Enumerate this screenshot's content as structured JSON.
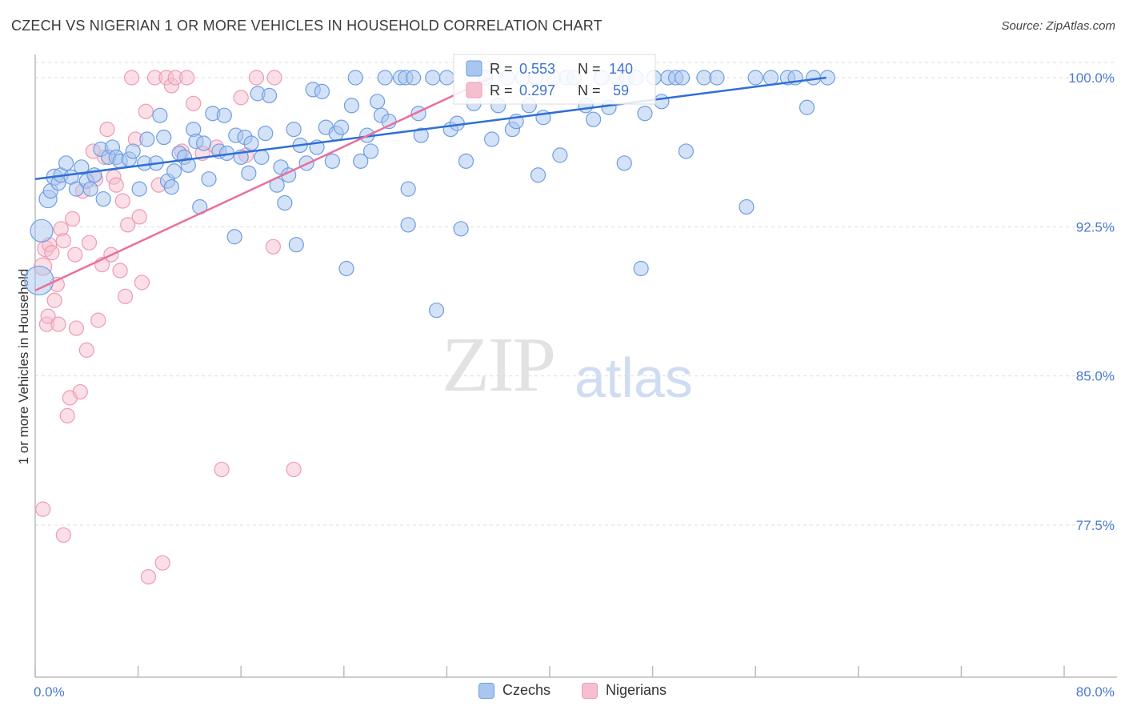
{
  "header": {
    "title": "CZECH VS NIGERIAN 1 OR MORE VEHICLES IN HOUSEHOLD CORRELATION CHART",
    "source": "Source: ZipAtlas.com"
  },
  "watermark": {
    "zip": "ZIP",
    "atlas": "atlas"
  },
  "colors": {
    "czech_fill": "#a9c6f0",
    "czech_stroke": "#6f9ee0",
    "czech_line": "#2e6fd6",
    "nigerian_fill": "#f6bfd0",
    "nigerian_stroke": "#ef9ab5",
    "nigerian_line": "#e8709a",
    "axis_text": "#4a7bd0",
    "grid": "#dddddd"
  },
  "legend": {
    "czech": {
      "r_label": "R =",
      "r_value": "0.553",
      "n_label": "N =",
      "n_value": "140"
    },
    "nigerian": {
      "r_label": "R =",
      "r_value": "0.297",
      "n_label": "N =",
      "n_value": " 59"
    }
  },
  "bottom_legend": {
    "czechs": "Czechs",
    "nigerians": "Nigerians"
  },
  "chart_data": {
    "type": "scatter",
    "title": "CZECH VS NIGERIAN 1 OR MORE VEHICLES IN HOUSEHOLD CORRELATION CHART",
    "xlabel": "",
    "ylabel": "1 or more Vehicles in Household",
    "xlim": [
      0,
      80
    ],
    "ylim": [
      71,
      100.5
    ],
    "x_tick_labels": [
      "0.0%",
      "80.0%"
    ],
    "y_ticks": [
      77.5,
      85.0,
      92.5,
      100.0
    ],
    "y_tick_labels": [
      "77.5%",
      "85.0%",
      "92.5%",
      "100.0%"
    ],
    "grid": "horizontal dashed",
    "legend_position": "top-center",
    "series": [
      {
        "name": "Czechs",
        "R": 0.553,
        "N": 140,
        "trend": [
          [
            0,
            94.9
          ],
          [
            61.5,
            100.0
          ]
        ],
        "points": [
          [
            0.5,
            92.3,
            14
          ],
          [
            0.3,
            89.8,
            18
          ],
          [
            1.0,
            93.9,
            11
          ],
          [
            1.2,
            94.3,
            9
          ],
          [
            1.5,
            95.0,
            10
          ],
          [
            1.8,
            94.7,
            9
          ],
          [
            2.0,
            95.1,
            9
          ],
          [
            2.4,
            95.7,
            9
          ],
          [
            2.8,
            95.0,
            9
          ],
          [
            3.2,
            94.4,
            9
          ],
          [
            3.6,
            95.5,
            9
          ],
          [
            4.0,
            94.8,
            9
          ],
          [
            4.3,
            94.4,
            9
          ],
          [
            4.6,
            95.1,
            9
          ],
          [
            5.1,
            96.4,
            9
          ],
          [
            5.3,
            93.9,
            9
          ],
          [
            5.7,
            96.0,
            9
          ],
          [
            6.0,
            96.5,
            9
          ],
          [
            6.3,
            96.0,
            9
          ],
          [
            6.6,
            95.8,
            9
          ],
          [
            7.3,
            95.9,
            9
          ],
          [
            7.6,
            96.3,
            9
          ],
          [
            8.1,
            94.4,
            9
          ],
          [
            8.5,
            95.7,
            9
          ],
          [
            8.7,
            96.9,
            9
          ],
          [
            9.4,
            95.7,
            9
          ],
          [
            9.7,
            98.1,
            9
          ],
          [
            10.0,
            97.0,
            9
          ],
          [
            10.3,
            94.8,
            9
          ],
          [
            10.6,
            94.5,
            9
          ],
          [
            10.8,
            95.3,
            9
          ],
          [
            11.2,
            96.2,
            9
          ],
          [
            11.6,
            96.0,
            9
          ],
          [
            11.9,
            95.6,
            9
          ],
          [
            12.3,
            97.4,
            9
          ],
          [
            12.5,
            96.8,
            9
          ],
          [
            12.8,
            93.5,
            9
          ],
          [
            13.1,
            96.7,
            9
          ],
          [
            13.5,
            94.9,
            9
          ],
          [
            13.8,
            98.2,
            9
          ],
          [
            14.3,
            96.3,
            9
          ],
          [
            14.7,
            98.1,
            9
          ],
          [
            14.9,
            96.2,
            9
          ],
          [
            15.5,
            92.0,
            9
          ],
          [
            15.6,
            97.1,
            9
          ],
          [
            16.0,
            96.0,
            9
          ],
          [
            16.3,
            97.0,
            9
          ],
          [
            16.6,
            95.2,
            9
          ],
          [
            16.8,
            96.7,
            9
          ],
          [
            17.3,
            99.2,
            9
          ],
          [
            17.6,
            96.0,
            9
          ],
          [
            17.9,
            97.2,
            9
          ],
          [
            18.2,
            99.1,
            9
          ],
          [
            18.8,
            94.6,
            9
          ],
          [
            19.1,
            95.5,
            9
          ],
          [
            19.4,
            93.7,
            9
          ],
          [
            19.7,
            95.1,
            9
          ],
          [
            20.1,
            97.4,
            9
          ],
          [
            20.3,
            91.6,
            9
          ],
          [
            20.6,
            96.6,
            9
          ],
          [
            21.1,
            95.7,
            9
          ],
          [
            21.6,
            99.4,
            9
          ],
          [
            21.9,
            96.5,
            9
          ],
          [
            22.3,
            99.3,
            9
          ],
          [
            22.6,
            97.5,
            9
          ],
          [
            23.1,
            95.8,
            9
          ],
          [
            23.4,
            97.2,
            9
          ],
          [
            23.8,
            97.5,
            9
          ],
          [
            24.2,
            90.4,
            9
          ],
          [
            24.6,
            98.6,
            9
          ],
          [
            24.9,
            100.0,
            9
          ],
          [
            25.3,
            95.8,
            9
          ],
          [
            25.8,
            97.1,
            9
          ],
          [
            26.1,
            96.3,
            9
          ],
          [
            26.6,
            98.8,
            9
          ],
          [
            26.9,
            98.1,
            9
          ],
          [
            27.2,
            100.0,
            9
          ],
          [
            27.5,
            97.8,
            9
          ],
          [
            28.4,
            100.0,
            9
          ],
          [
            28.8,
            100.0,
            9
          ],
          [
            29.0,
            94.4,
            9
          ],
          [
            29.0,
            92.6,
            9
          ],
          [
            29.4,
            100.0,
            9
          ],
          [
            29.8,
            98.2,
            9
          ],
          [
            30.0,
            97.1,
            9
          ],
          [
            30.9,
            100.0,
            9
          ],
          [
            31.2,
            88.3,
            9
          ],
          [
            32.0,
            100.0,
            9
          ],
          [
            32.3,
            97.4,
            9
          ],
          [
            32.8,
            97.7,
            9
          ],
          [
            33.1,
            92.4,
            9
          ],
          [
            33.5,
            95.8,
            9
          ],
          [
            34.1,
            98.7,
            9
          ],
          [
            35.0,
            100.0,
            9
          ],
          [
            35.5,
            96.9,
            9
          ],
          [
            36.0,
            98.6,
            9
          ],
          [
            36.7,
            100.0,
            9
          ],
          [
            37.1,
            97.4,
            9
          ],
          [
            37.4,
            97.8,
            9
          ],
          [
            37.9,
            100.0,
            9
          ],
          [
            38.4,
            98.6,
            9
          ],
          [
            38.9,
            100.0,
            9
          ],
          [
            39.1,
            95.1,
            9
          ],
          [
            39.5,
            98.0,
            9
          ],
          [
            40.3,
            100.0,
            9
          ],
          [
            40.8,
            96.1,
            9
          ],
          [
            41.3,
            100.0,
            9
          ],
          [
            41.9,
            100.0,
            9
          ],
          [
            42.8,
            98.6,
            9
          ],
          [
            43.4,
            97.9,
            9
          ],
          [
            44.0,
            100.0,
            9
          ],
          [
            44.6,
            98.5,
            9
          ],
          [
            45.2,
            100.0,
            9
          ],
          [
            46.0,
            100.0,
            9
          ],
          [
            46.7,
            100.0,
            9
          ],
          [
            47.1,
            90.4,
            9
          ],
          [
            47.4,
            98.2,
            9
          ],
          [
            48.1,
            100.0,
            9
          ],
          [
            48.7,
            98.8,
            9
          ],
          [
            49.2,
            100.0,
            9
          ],
          [
            49.8,
            100.0,
            9
          ],
          [
            50.3,
            100.0,
            9
          ],
          [
            50.6,
            96.3,
            9
          ],
          [
            52.0,
            100.0,
            9
          ],
          [
            53.0,
            100.0,
            9
          ],
          [
            55.3,
            93.5,
            9
          ],
          [
            56.0,
            100.0,
            9
          ],
          [
            57.2,
            100.0,
            9
          ],
          [
            58.5,
            100.0,
            9
          ],
          [
            59.1,
            100.0,
            9
          ],
          [
            60.0,
            98.5,
            9
          ],
          [
            60.5,
            100.0,
            9
          ],
          [
            61.6,
            100.0,
            9
          ],
          [
            45.8,
            95.7,
            9
          ]
        ]
      },
      {
        "name": "Nigerians",
        "R": 0.297,
        "N": 59,
        "trend": [
          [
            0,
            89.3
          ],
          [
            35.5,
            100.0
          ]
        ],
        "points": [
          [
            0.6,
            90.5,
            11
          ],
          [
            0.8,
            91.4,
            10
          ],
          [
            0.9,
            87.6,
            9
          ],
          [
            1.0,
            88.0,
            9
          ],
          [
            1.1,
            91.6,
            9
          ],
          [
            1.3,
            91.2,
            9
          ],
          [
            1.5,
            88.8,
            9
          ],
          [
            1.7,
            89.6,
            9
          ],
          [
            1.8,
            87.6,
            9
          ],
          [
            2.0,
            92.4,
            9
          ],
          [
            2.2,
            91.8,
            9
          ],
          [
            2.5,
            83.0,
            9
          ],
          [
            2.7,
            83.9,
            9
          ],
          [
            2.9,
            92.9,
            9
          ],
          [
            3.1,
            91.1,
            9
          ],
          [
            3.2,
            87.4,
            9
          ],
          [
            3.5,
            84.2,
            9
          ],
          [
            3.7,
            94.3,
            9
          ],
          [
            4.0,
            86.3,
            9
          ],
          [
            4.2,
            91.7,
            9
          ],
          [
            4.5,
            96.3,
            9
          ],
          [
            4.7,
            94.9,
            9
          ],
          [
            4.9,
            87.8,
            9
          ],
          [
            5.2,
            90.6,
            9
          ],
          [
            5.4,
            96.0,
            9
          ],
          [
            5.6,
            97.4,
            9
          ],
          [
            5.9,
            91.1,
            9
          ],
          [
            6.1,
            95.0,
            9
          ],
          [
            6.3,
            94.6,
            9
          ],
          [
            6.6,
            90.3,
            9
          ],
          [
            6.8,
            93.8,
            9
          ],
          [
            7.0,
            89.0,
            9
          ],
          [
            7.2,
            92.6,
            9
          ],
          [
            7.5,
            100.0,
            9
          ],
          [
            7.8,
            96.9,
            9
          ],
          [
            8.1,
            93.0,
            9
          ],
          [
            8.3,
            89.7,
            9
          ],
          [
            8.6,
            98.3,
            9
          ],
          [
            8.8,
            74.9,
            9
          ],
          [
            9.3,
            100.0,
            9
          ],
          [
            9.6,
            94.6,
            9
          ],
          [
            9.9,
            75.6,
            9
          ],
          [
            10.2,
            100.0,
            9
          ],
          [
            10.6,
            99.6,
            9
          ],
          [
            10.9,
            100.0,
            9
          ],
          [
            11.4,
            96.3,
            9
          ],
          [
            11.8,
            100.0,
            9
          ],
          [
            12.3,
            98.7,
            9
          ],
          [
            13.0,
            96.2,
            9
          ],
          [
            14.1,
            96.5,
            9
          ],
          [
            14.5,
            80.3,
            9
          ],
          [
            16.0,
            99.0,
            9
          ],
          [
            16.4,
            96.1,
            9
          ],
          [
            17.2,
            100.0,
            9
          ],
          [
            18.5,
            91.5,
            9
          ],
          [
            18.6,
            100.0,
            9
          ],
          [
            20.1,
            80.3,
            9
          ],
          [
            0.6,
            78.3,
            9
          ],
          [
            2.2,
            77.0,
            9
          ]
        ]
      }
    ]
  }
}
